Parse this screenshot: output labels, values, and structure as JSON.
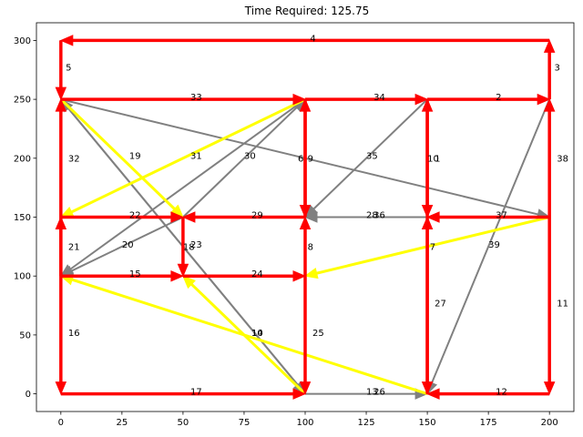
{
  "chart_data": {
    "type": "directed-graph",
    "title": "Time Required: 125.75",
    "xlim": [
      -10,
      210
    ],
    "ylim": [
      -15,
      315
    ],
    "xticks": [
      "0",
      "25",
      "50",
      "75",
      "100",
      "125",
      "150",
      "175",
      "200"
    ],
    "yticks": [
      "0",
      "50",
      "100",
      "150",
      "200",
      "250",
      "300"
    ],
    "colors": {
      "red": "#ff0000",
      "yellow": "#ffff00",
      "gray": "#808080"
    },
    "edges": [
      {
        "id": "e4",
        "from": [
          200,
          300
        ],
        "to": [
          0,
          300
        ],
        "color": "red",
        "label": "4",
        "lx": 102,
        "ly": 302
      },
      {
        "id": "e5",
        "from": [
          0,
          300
        ],
        "to": [
          0,
          250
        ],
        "color": "red",
        "label": "5",
        "lx": 2,
        "ly": 277
      },
      {
        "id": "e3",
        "from": [
          200,
          250
        ],
        "to": [
          200,
          300
        ],
        "color": "red",
        "label": "3",
        "lx": 202,
        "ly": 277
      },
      {
        "id": "e33",
        "from": [
          0,
          250
        ],
        "to": [
          100,
          250
        ],
        "color": "red",
        "label": "33",
        "lx": 53,
        "ly": 252
      },
      {
        "id": "e34",
        "from": [
          100,
          250
        ],
        "to": [
          150,
          250
        ],
        "color": "red",
        "label": "34",
        "lx": 128,
        "ly": 252
      },
      {
        "id": "e2",
        "from": [
          150,
          250
        ],
        "to": [
          200,
          250
        ],
        "color": "red",
        "label": "2",
        "lx": 178,
        "ly": 252
      },
      {
        "id": "e32",
        "from": [
          0,
          150
        ],
        "to": [
          0,
          250
        ],
        "color": "red",
        "label": "32",
        "lx": 3,
        "ly": 200
      },
      {
        "id": "e6",
        "from": [
          100,
          150
        ],
        "to": [
          100,
          250
        ],
        "color": "red",
        "label": "6",
        "lx": 97,
        "ly": 200
      },
      {
        "id": "e9",
        "from": [
          100,
          250
        ],
        "to": [
          100,
          150
        ],
        "color": "red",
        "label": "9",
        "lx": 101,
        "ly": 200
      },
      {
        "id": "e10",
        "from": [
          150,
          150
        ],
        "to": [
          150,
          250
        ],
        "color": "red",
        "label": "10",
        "lx": 150,
        "ly": 200
      },
      {
        "id": "e1",
        "from": [
          150,
          250
        ],
        "to": [
          150,
          150
        ],
        "color": "red",
        "label": "1",
        "lx": 153,
        "ly": 200
      },
      {
        "id": "e38",
        "from": [
          200,
          150
        ],
        "to": [
          200,
          250
        ],
        "color": "red",
        "label": "38",
        "lx": 203,
        "ly": 200
      },
      {
        "id": "e22",
        "from": [
          0,
          150
        ],
        "to": [
          50,
          150
        ],
        "color": "red",
        "label": "22",
        "lx": 28,
        "ly": 152
      },
      {
        "id": "e29",
        "from": [
          100,
          150
        ],
        "to": [
          50,
          150
        ],
        "color": "red",
        "label": "29",
        "lx": 78,
        "ly": 152
      },
      {
        "id": "e37",
        "from": [
          200,
          150
        ],
        "to": [
          150,
          150
        ],
        "color": "red",
        "label": "37",
        "lx": 178,
        "ly": 152
      },
      {
        "id": "e21",
        "from": [
          0,
          100
        ],
        "to": [
          0,
          150
        ],
        "color": "red",
        "label": "21",
        "lx": 3,
        "ly": 125
      },
      {
        "id": "e18",
        "from": [
          50,
          150
        ],
        "to": [
          50,
          100
        ],
        "color": "red",
        "label": "18",
        "lx": 50,
        "ly": 125
      },
      {
        "id": "e8",
        "from": [
          100,
          100
        ],
        "to": [
          100,
          150
        ],
        "color": "red",
        "label": "8",
        "lx": 101,
        "ly": 125
      },
      {
        "id": "e7",
        "from": [
          150,
          0
        ],
        "to": [
          150,
          150
        ],
        "color": "red",
        "label": "7",
        "lx": 151,
        "ly": 125
      },
      {
        "id": "e15",
        "from": [
          0,
          100
        ],
        "to": [
          50,
          100
        ],
        "color": "red",
        "label": "15",
        "lx": 28,
        "ly": 102
      },
      {
        "id": "e24",
        "from": [
          50,
          100
        ],
        "to": [
          100,
          100
        ],
        "color": "red",
        "label": "24",
        "lx": 78,
        "ly": 102
      },
      {
        "id": "e16",
        "from": [
          0,
          150
        ],
        "to": [
          0,
          0
        ],
        "color": "red",
        "label": "16",
        "lx": 3,
        "ly": 52
      },
      {
        "id": "e25",
        "from": [
          100,
          100
        ],
        "to": [
          100,
          0
        ],
        "color": "red",
        "label": "25",
        "lx": 103,
        "ly": 52
      },
      {
        "id": "e27",
        "from": [
          150,
          150
        ],
        "to": [
          150,
          0
        ],
        "color": "red",
        "label": "27",
        "lx": 153,
        "ly": 77
      },
      {
        "id": "e11",
        "from": [
          200,
          150
        ],
        "to": [
          200,
          0
        ],
        "color": "red",
        "label": "11",
        "lx": 203,
        "ly": 77
      },
      {
        "id": "e17",
        "from": [
          0,
          0
        ],
        "to": [
          100,
          0
        ],
        "color": "red",
        "label": "17",
        "lx": 53,
        "ly": 2
      },
      {
        "id": "e12",
        "from": [
          200,
          0
        ],
        "to": [
          150,
          0
        ],
        "color": "red",
        "label": "12",
        "lx": 178,
        "ly": 2
      },
      {
        "id": "e19",
        "from": [
          0,
          250
        ],
        "to": [
          50,
          150
        ],
        "color": "yellow",
        "label": "19",
        "lx": 28,
        "ly": 202
      },
      {
        "id": "e31",
        "from": [
          100,
          250
        ],
        "to": [
          0,
          150
        ],
        "color": "yellow",
        "label": "31",
        "lx": 53,
        "ly": 202
      },
      {
        "id": "e39",
        "from": [
          200,
          150
        ],
        "to": [
          100,
          100
        ],
        "color": "yellow",
        "label": "39",
        "lx": 175,
        "ly": 127
      },
      {
        "id": "e14",
        "from": [
          100,
          0
        ],
        "to": [
          50,
          100
        ],
        "color": "yellow",
        "label": "14",
        "lx": 78,
        "ly": 52
      },
      {
        "id": "e26",
        "from": [
          150,
          0
        ],
        "to": [
          0,
          100
        ],
        "color": "yellow",
        "label": "26",
        "lx": 128,
        "ly": 2
      },
      {
        "id": "e30",
        "from": [
          50,
          150
        ],
        "to": [
          100,
          250
        ],
        "color": "gray",
        "label": "30",
        "lx": 75,
        "ly": 202
      },
      {
        "id": "e35",
        "from": [
          150,
          250
        ],
        "to": [
          100,
          150
        ],
        "color": "gray",
        "label": "35",
        "lx": 125,
        "ly": 202
      },
      {
        "id": "e36",
        "from": [
          0,
          250
        ],
        "to": [
          200,
          150
        ],
        "color": "gray",
        "label": "36",
        "lx": 128,
        "ly": 152
      },
      {
        "id": "e28",
        "from": [
          150,
          150
        ],
        "to": [
          100,
          150
        ],
        "color": "gray",
        "label": "28",
        "lx": 125,
        "ly": 152
      },
      {
        "id": "e20",
        "from": [
          50,
          150
        ],
        "to": [
          0,
          100
        ],
        "color": "gray",
        "label": "20",
        "lx": 25,
        "ly": 127
      },
      {
        "id": "e23",
        "from": [
          100,
          0
        ],
        "to": [
          0,
          250
        ],
        "color": "gray",
        "label": "23",
        "lx": 53,
        "ly": 127
      },
      {
        "id": "e40",
        "from": [
          100,
          250
        ],
        "to": [
          0,
          100
        ],
        "color": "gray",
        "label": "",
        "lx": 0,
        "ly": 0
      },
      {
        "id": "e13",
        "from": [
          100,
          0
        ],
        "to": [
          150,
          0
        ],
        "color": "gray",
        "label": "13",
        "lx": 125,
        "ly": 2
      },
      {
        "id": "e41",
        "from": [
          200,
          250
        ],
        "to": [
          150,
          0
        ],
        "color": "gray",
        "label": "",
        "lx": 0,
        "ly": 0
      },
      {
        "id": "e10b",
        "from": [
          0,
          250
        ],
        "to": [
          100,
          0
        ],
        "color": "gray",
        "label": "10",
        "lx": 78,
        "ly": 52
      }
    ]
  }
}
